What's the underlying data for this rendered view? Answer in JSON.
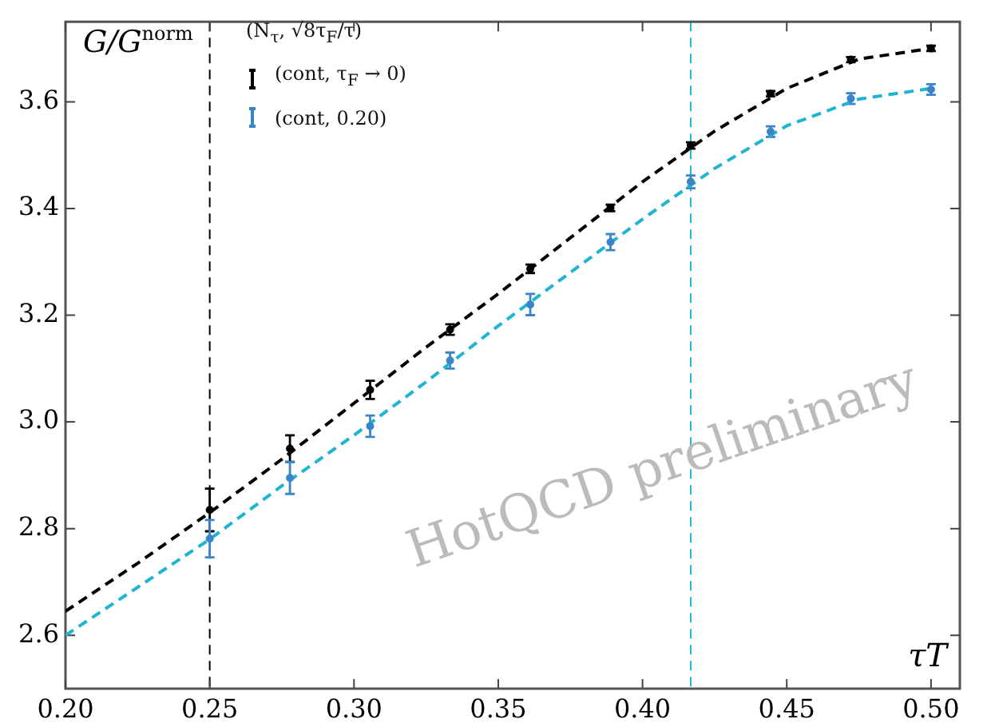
{
  "chart_data": {
    "type": "scatter",
    "ylabel": "G/G$^{norm}$",
    "xlabel": "τT",
    "legend_title": "(N$_{τ}$, √8τ$_{F}$/τ)",
    "legend": "top left",
    "grid": false,
    "xlim": [
      0.2,
      0.51
    ],
    "xticks": [
      {
        "value": 0.2,
        "label": "0.20"
      },
      {
        "value": 0.25,
        "label": "0.25"
      },
      {
        "value": 0.3,
        "label": "0.30"
      },
      {
        "value": 0.35,
        "label": "0.35"
      },
      {
        "value": 0.4,
        "label": "0.40"
      },
      {
        "value": 0.45,
        "label": "0.45"
      },
      {
        "value": 0.5,
        "label": "0.50"
      }
    ],
    "ylim": [
      2.5,
      3.75
    ],
    "yticks": [
      {
        "value": 2.6,
        "label": "2.6"
      },
      {
        "value": 2.8,
        "label": "2.8"
      },
      {
        "value": 3.0,
        "label": "3.0"
      },
      {
        "value": 3.2,
        "label": "3.2"
      },
      {
        "value": 3.4,
        "label": "3.4"
      },
      {
        "value": 3.6,
        "label": "3.6"
      }
    ],
    "x": [
      0.25,
      0.2778,
      0.3056,
      0.3333,
      0.3611,
      0.3889,
      0.4167,
      0.4444,
      0.4722,
      0.5
    ],
    "series": [
      {
        "type": "line",
        "line_style": "dashed",
        "marker": "none",
        "color": "#000000",
        "x": [
          0.2,
          0.225,
          0.25,
          0.275,
          0.3,
          0.325,
          0.35,
          0.375,
          0.4,
          0.425,
          0.45,
          0.475,
          0.5
        ],
        "values": [
          2.645,
          2.735,
          2.83,
          2.93,
          3.035,
          3.14,
          3.24,
          3.345,
          3.45,
          3.545,
          3.625,
          3.68,
          3.7
        ]
      },
      {
        "type": "line",
        "line_style": "dashed",
        "marker": "none",
        "color": "#1fb4d2",
        "x": [
          0.2,
          0.225,
          0.25,
          0.275,
          0.3,
          0.325,
          0.35,
          0.375,
          0.4,
          0.425,
          0.45,
          0.475,
          0.5
        ],
        "values": [
          2.6,
          2.69,
          2.78,
          2.88,
          2.975,
          3.075,
          3.18,
          3.28,
          3.38,
          3.475,
          3.555,
          3.605,
          3.625
        ]
      },
      {
        "name": "(cont, τ$_{F}$ → 0)",
        "color": "#000000",
        "values": [
          2.835,
          2.95,
          3.06,
          3.173,
          3.287,
          3.401,
          3.518,
          3.615,
          3.679,
          3.7
        ],
        "errors": [
          0.04,
          0.025,
          0.017,
          0.01,
          0.008,
          0.006,
          0.006,
          0.005,
          0.005,
          0.005
        ]
      },
      {
        "name": "(cont, 0.20)",
        "color": "#3a85c8",
        "values": [
          2.781,
          2.895,
          2.992,
          3.115,
          3.22,
          3.337,
          3.45,
          3.544,
          3.606,
          3.623
        ],
        "errors": [
          0.035,
          0.03,
          0.02,
          0.015,
          0.02,
          0.015,
          0.012,
          0.01,
          0.01,
          0.01
        ]
      }
    ],
    "ref_lines": [
      {
        "axis": "x",
        "value": 0.25,
        "color": "#000000",
        "line_style": "dashed"
      },
      {
        "axis": "x",
        "value": 0.4167,
        "color": "#1fb4d2",
        "line_style": "dashed"
      }
    ],
    "annotations": [
      "HotQCD preliminary"
    ]
  }
}
